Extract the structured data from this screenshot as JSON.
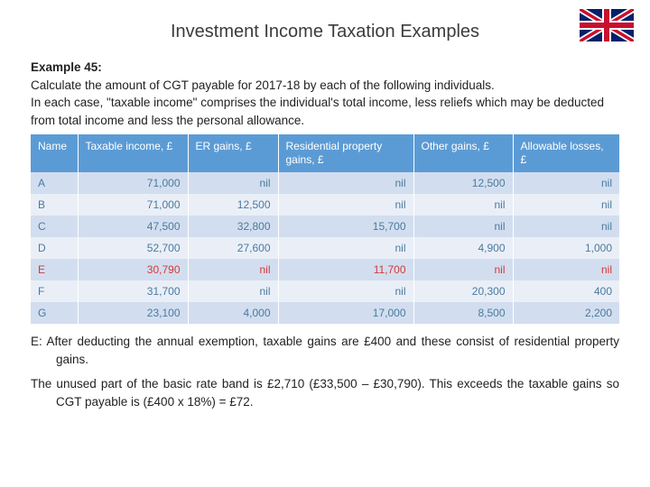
{
  "title": "Investment Income Taxation Examples",
  "example_label": "Example 45:",
  "example_text_1": "Calculate the amount of CGT payable for 2017-18 by each of the following individuals.",
  "example_text_2": "In each case, \"taxable income\" comprises the individual's total income, less reliefs which may be deducted from total income and less the personal allowance.",
  "table": {
    "columns": [
      "Name",
      "Taxable income, £",
      "ER gains, £",
      "Residential property gains, £",
      "Other gains, £",
      "Allowable losses, £"
    ],
    "col_widths": [
      "52px",
      "122px",
      "100px",
      "150px",
      "110px",
      "auto"
    ],
    "header_bg": "#5b9bd5",
    "header_fg": "#ffffff",
    "band_colors": [
      "#d2deef",
      "#eaeff7"
    ],
    "cell_fg": "#4a7a9e",
    "highlight_fg": "#d23a3a",
    "rows": [
      {
        "name": "A",
        "cells": [
          "71,000",
          "nil",
          "nil",
          "12,500",
          "nil"
        ],
        "highlight": false
      },
      {
        "name": "B",
        "cells": [
          "71,000",
          "12,500",
          "nil",
          "nil",
          "nil"
        ],
        "highlight": false
      },
      {
        "name": "C",
        "cells": [
          "47,500",
          "32,800",
          "15,700",
          "nil",
          "nil"
        ],
        "highlight": false
      },
      {
        "name": "D",
        "cells": [
          "52,700",
          "27,600",
          "nil",
          "4,900",
          "1,000"
        ],
        "highlight": false
      },
      {
        "name": "E",
        "cells": [
          "30,790",
          "nil",
          "11,700",
          "nil",
          "nil"
        ],
        "highlight": true
      },
      {
        "name": "F",
        "cells": [
          "31,700",
          "nil",
          "nil",
          "20,300",
          "400"
        ],
        "highlight": false
      },
      {
        "name": "G",
        "cells": [
          "23,100",
          "4,000",
          "17,000",
          "8,500",
          "2,200"
        ],
        "highlight": false
      }
    ]
  },
  "note_1": "E: After deducting the annual exemption, taxable gains are £400 and these consist of residential property gains.",
  "note_2": "The unused part of the basic rate band is £2,710 (£33,500 – £30,790). This exceeds the taxable gains so CGT payable is (£400 x 18%) = £72."
}
